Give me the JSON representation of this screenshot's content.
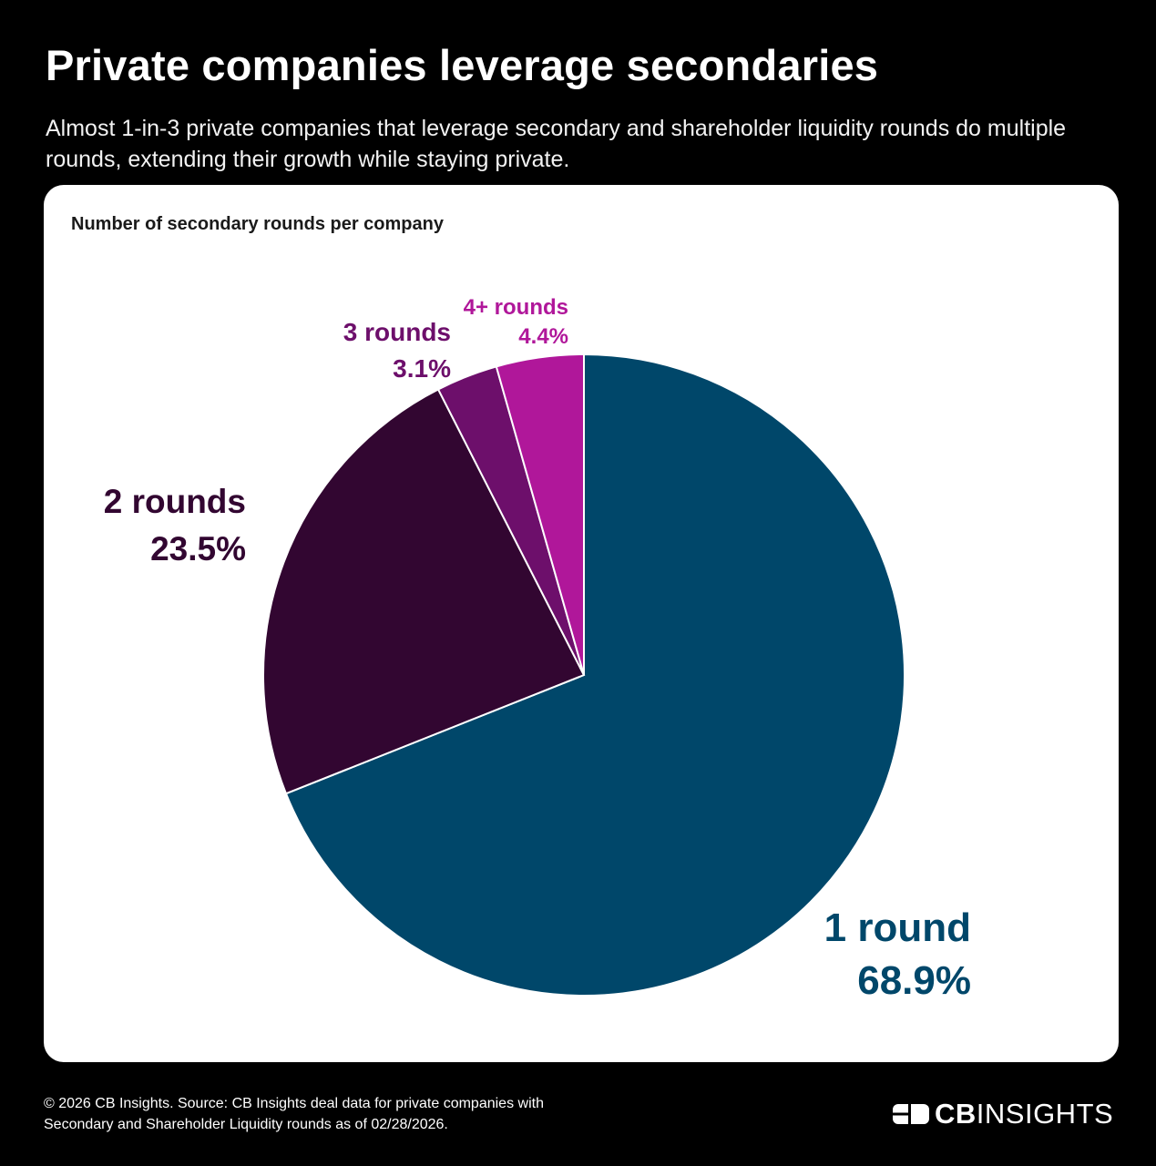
{
  "header": {
    "title": "Private companies leverage secondaries",
    "subtitle": "Almost 1-in-3 private companies that leverage secondary and shareholder liquidity rounds do multiple rounds, extending their growth while staying private."
  },
  "chart_heading": "Number of secondary rounds per company",
  "chart_data": {
    "type": "pie",
    "title": "Number of secondary rounds per company",
    "slices": [
      {
        "label": "1 round",
        "value": 68.9,
        "value_label": "68.9%",
        "color": "#00476a"
      },
      {
        "label": "2 rounds",
        "value": 23.5,
        "value_label": "23.5%",
        "color": "#320631"
      },
      {
        "label": "3 rounds",
        "value": 3.1,
        "value_label": "3.1%",
        "color": "#6d0f6b"
      },
      {
        "label": "4+ rounds",
        "value": 4.4,
        "value_label": "4.4%",
        "color": "#b0179a"
      }
    ],
    "start_angle": "12 o'clock",
    "direction": "clockwise"
  },
  "footer": {
    "source_line1": "© 2026 CB Insights. Source: CB Insights deal data for private companies with",
    "source_line2": "Secondary and Shareholder Liquidity rounds as of 02/28/2026.",
    "logo_cb": "CB",
    "logo_insights": "INSIGHTS"
  }
}
